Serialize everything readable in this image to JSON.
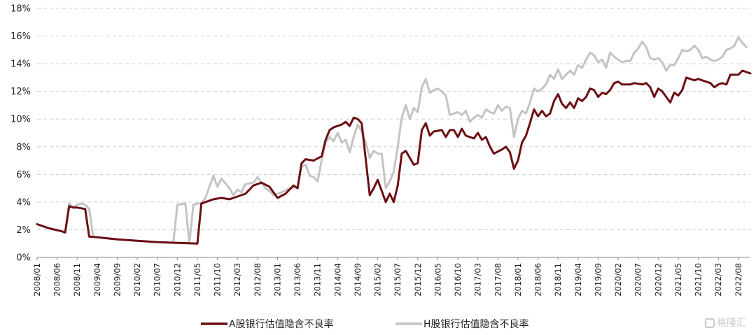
{
  "chart_data": {
    "type": "line",
    "title": "",
    "xlabel": "",
    "ylabel": "",
    "ylim": [
      0,
      18
    ],
    "y_ticks": [
      0,
      2,
      4,
      6,
      8,
      10,
      12,
      14,
      16,
      18
    ],
    "y_tick_labels": [
      "0%",
      "2%",
      "4%",
      "6%",
      "8%",
      "10%",
      "12%",
      "14%",
      "16%",
      "18%"
    ],
    "x_range": [
      "2008/01",
      "2022/11"
    ],
    "x_tick_labels": [
      "2008/01",
      "2008/06",
      "2008/11",
      "2009/04",
      "2009/09",
      "2010/02",
      "2010/07",
      "2010/12",
      "2011/05",
      "2011/10",
      "2012/03",
      "2012/08",
      "2013/01",
      "2013/06",
      "2013/11",
      "2014/04",
      "2014/09",
      "2015/02",
      "2015/07",
      "2015/12",
      "2016/05",
      "2016/10",
      "2017/03",
      "2017/08",
      "2018/01",
      "2018/06",
      "2018/11",
      "2019/04",
      "2019/09",
      "2020/02",
      "2020/07",
      "2020/12",
      "2021/05",
      "2021/10",
      "2022/03",
      "2022/08"
    ],
    "grid": "horizontal-dashed",
    "legend_position": "bottom",
    "series": [
      {
        "name": "A股银行估值隐含不良率",
        "color": "#6b0f13",
        "points": [
          [
            "2008/01",
            2.4
          ],
          [
            "2008/04",
            2.1
          ],
          [
            "2008/07",
            1.9
          ],
          [
            "2008/08",
            1.8
          ],
          [
            "2008/09",
            3.7
          ],
          [
            "2008/10",
            3.6
          ],
          [
            "2008/11",
            3.6
          ],
          [
            "2008/12",
            3.55
          ],
          [
            "2009/01",
            3.5
          ],
          [
            "2009/02",
            1.5
          ],
          [
            "2009/04",
            1.45
          ],
          [
            "2009/09",
            1.3
          ],
          [
            "2010/02",
            1.2
          ],
          [
            "2010/07",
            1.1
          ],
          [
            "2010/12",
            1.05
          ],
          [
            "2011/05",
            1.0
          ],
          [
            "2011/06",
            3.9
          ],
          [
            "2011/07",
            4.0
          ],
          [
            "2011/09",
            4.2
          ],
          [
            "2011/11",
            4.3
          ],
          [
            "2012/01",
            4.2
          ],
          [
            "2012/03",
            4.4
          ],
          [
            "2012/05",
            4.6
          ],
          [
            "2012/07",
            5.2
          ],
          [
            "2012/09",
            5.4
          ],
          [
            "2012/11",
            5.1
          ],
          [
            "2013/01",
            4.3
          ],
          [
            "2013/03",
            4.6
          ],
          [
            "2013/05",
            5.2
          ],
          [
            "2013/06",
            5.0
          ],
          [
            "2013/07",
            6.8
          ],
          [
            "2013/08",
            7.1
          ],
          [
            "2013/10",
            7.0
          ],
          [
            "2013/12",
            7.3
          ],
          [
            "2014/01",
            8.5
          ],
          [
            "2014/02",
            9.2
          ],
          [
            "2014/03",
            9.4
          ],
          [
            "2014/05",
            9.6
          ],
          [
            "2014/06",
            9.8
          ],
          [
            "2014/07",
            9.5
          ],
          [
            "2014/08",
            10.1
          ],
          [
            "2014/09",
            10.0
          ],
          [
            "2014/10",
            9.7
          ],
          [
            "2014/12",
            4.5
          ],
          [
            "2015/01",
            5.0
          ],
          [
            "2015/02",
            5.6
          ],
          [
            "2015/04",
            4.0
          ],
          [
            "2015/05",
            4.6
          ],
          [
            "2015/06",
            4.0
          ],
          [
            "2015/07",
            5.2
          ],
          [
            "2015/08",
            7.5
          ],
          [
            "2015/09",
            7.7
          ],
          [
            "2015/10",
            7.2
          ],
          [
            "2015/11",
            6.7
          ],
          [
            "2015/12",
            6.8
          ],
          [
            "2016/01",
            9.2
          ],
          [
            "2016/02",
            9.7
          ],
          [
            "2016/03",
            8.8
          ],
          [
            "2016/04",
            9.1
          ],
          [
            "2016/06",
            9.2
          ],
          [
            "2016/07",
            8.7
          ],
          [
            "2016/08",
            9.2
          ],
          [
            "2016/09",
            9.2
          ],
          [
            "2016/10",
            8.7
          ],
          [
            "2016/11",
            9.3
          ],
          [
            "2016/12",
            8.8
          ],
          [
            "2017/02",
            8.6
          ],
          [
            "2017/03",
            9.0
          ],
          [
            "2017/04",
            8.5
          ],
          [
            "2017/05",
            8.7
          ],
          [
            "2017/06",
            8.0
          ],
          [
            "2017/07",
            7.5
          ],
          [
            "2017/09",
            7.8
          ],
          [
            "2017/10",
            8.0
          ],
          [
            "2017/11",
            7.6
          ],
          [
            "2017/12",
            6.4
          ],
          [
            "2018/01",
            7.0
          ],
          [
            "2018/02",
            8.3
          ],
          [
            "2018/03",
            8.8
          ],
          [
            "2018/04",
            9.7
          ],
          [
            "2018/05",
            10.7
          ],
          [
            "2018/06",
            10.2
          ],
          [
            "2018/07",
            10.6
          ],
          [
            "2018/08",
            10.2
          ],
          [
            "2018/09",
            10.4
          ],
          [
            "2018/10",
            11.3
          ],
          [
            "2018/11",
            11.8
          ],
          [
            "2018/12",
            11.1
          ],
          [
            "2019/01",
            10.8
          ],
          [
            "2019/02",
            11.2
          ],
          [
            "2019/03",
            10.8
          ],
          [
            "2019/04",
            11.5
          ],
          [
            "2019/05",
            11.3
          ],
          [
            "2019/06",
            11.6
          ],
          [
            "2019/07",
            12.2
          ],
          [
            "2019/08",
            12.1
          ],
          [
            "2019/09",
            11.6
          ],
          [
            "2019/10",
            11.9
          ],
          [
            "2019/11",
            11.8
          ],
          [
            "2019/12",
            12.1
          ],
          [
            "2020/01",
            12.6
          ],
          [
            "2020/02",
            12.7
          ],
          [
            "2020/03",
            12.5
          ],
          [
            "2020/05",
            12.5
          ],
          [
            "2020/06",
            12.6
          ],
          [
            "2020/08",
            12.5
          ],
          [
            "2020/09",
            12.6
          ],
          [
            "2020/10",
            12.3
          ],
          [
            "2020/11",
            11.6
          ],
          [
            "2020/12",
            12.2
          ],
          [
            "2021/01",
            12.0
          ],
          [
            "2021/02",
            11.6
          ],
          [
            "2021/03",
            11.2
          ],
          [
            "2021/04",
            11.9
          ],
          [
            "2021/05",
            11.7
          ],
          [
            "2021/06",
            12.1
          ],
          [
            "2021/07",
            13.0
          ],
          [
            "2021/09",
            12.8
          ],
          [
            "2021/10",
            12.9
          ],
          [
            "2021/12",
            12.7
          ],
          [
            "2022/01",
            12.6
          ],
          [
            "2022/02",
            12.3
          ],
          [
            "2022/03",
            12.5
          ],
          [
            "2022/04",
            12.6
          ],
          [
            "2022/05",
            12.5
          ],
          [
            "2022/06",
            13.2
          ],
          [
            "2022/07",
            13.2
          ],
          [
            "2022/08",
            13.2
          ],
          [
            "2022/09",
            13.5
          ],
          [
            "2022/11",
            13.3
          ]
        ]
      },
      {
        "name": "H股银行估值隐含不良率",
        "color": "#c4c4c4",
        "points": [
          [
            "2008/01",
            2.4
          ],
          [
            "2008/04",
            2.1
          ],
          [
            "2008/07",
            1.9
          ],
          [
            "2008/08",
            1.8
          ],
          [
            "2008/09",
            3.9
          ],
          [
            "2008/10",
            3.6
          ],
          [
            "2008/11",
            3.8
          ],
          [
            "2008/12",
            3.9
          ],
          [
            "2009/01",
            3.8
          ],
          [
            "2009/02",
            3.5
          ],
          [
            "2009/03",
            1.5
          ],
          [
            "2009/04",
            1.45
          ],
          [
            "2009/09",
            1.3
          ],
          [
            "2010/02",
            1.2
          ],
          [
            "2010/07",
            1.1
          ],
          [
            "2010/11",
            1.05
          ],
          [
            "2010/12",
            3.8
          ],
          [
            "2011/02",
            3.9
          ],
          [
            "2011/03",
            1.0
          ],
          [
            "2011/04",
            3.8
          ],
          [
            "2011/05",
            3.9
          ],
          [
            "2011/06",
            3.9
          ],
          [
            "2011/07",
            4.3
          ],
          [
            "2011/09",
            5.9
          ],
          [
            "2011/10",
            5.1
          ],
          [
            "2011/11",
            5.7
          ],
          [
            "2012/01",
            5.0
          ],
          [
            "2012/02",
            4.5
          ],
          [
            "2012/03",
            4.9
          ],
          [
            "2012/04",
            4.7
          ],
          [
            "2012/05",
            5.3
          ],
          [
            "2012/07",
            5.4
          ],
          [
            "2012/08",
            5.8
          ],
          [
            "2012/09",
            5.4
          ],
          [
            "2012/10",
            5.0
          ],
          [
            "2012/11",
            4.8
          ],
          [
            "2012/12",
            4.5
          ],
          [
            "2013/02",
            4.7
          ],
          [
            "2013/04",
            5.0
          ],
          [
            "2013/06",
            5.1
          ],
          [
            "2013/07",
            6.6
          ],
          [
            "2013/08",
            6.7
          ],
          [
            "2013/09",
            5.9
          ],
          [
            "2013/10",
            5.8
          ],
          [
            "2013/11",
            5.5
          ],
          [
            "2013/12",
            7.0
          ],
          [
            "2014/01",
            8.3
          ],
          [
            "2014/02",
            8.7
          ],
          [
            "2014/03",
            8.4
          ],
          [
            "2014/04",
            9.0
          ],
          [
            "2014/05",
            8.3
          ],
          [
            "2014/06",
            8.5
          ],
          [
            "2014/07",
            7.6
          ],
          [
            "2014/08",
            8.7
          ],
          [
            "2014/09",
            9.6
          ],
          [
            "2014/10",
            9.1
          ],
          [
            "2014/11",
            8.3
          ],
          [
            "2014/12",
            7.2
          ],
          [
            "2015/01",
            7.7
          ],
          [
            "2015/02",
            7.5
          ],
          [
            "2015/03",
            7.5
          ],
          [
            "2015/04",
            5.0
          ],
          [
            "2015/05",
            5.5
          ],
          [
            "2015/06",
            6.2
          ],
          [
            "2015/07",
            8.0
          ],
          [
            "2015/08",
            10.1
          ],
          [
            "2015/09",
            11.0
          ],
          [
            "2015/10",
            10.0
          ],
          [
            "2015/11",
            10.8
          ],
          [
            "2015/12",
            10.5
          ],
          [
            "2016/01",
            12.3
          ],
          [
            "2016/02",
            12.9
          ],
          [
            "2016/03",
            11.9
          ],
          [
            "2016/04",
            12.1
          ],
          [
            "2016/05",
            12.2
          ],
          [
            "2016/06",
            12.0
          ],
          [
            "2016/07",
            11.7
          ],
          [
            "2016/08",
            10.3
          ],
          [
            "2016/09",
            10.4
          ],
          [
            "2016/10",
            10.5
          ],
          [
            "2016/11",
            10.3
          ],
          [
            "2016/12",
            10.6
          ],
          [
            "2017/01",
            9.8
          ],
          [
            "2017/02",
            10.1
          ],
          [
            "2017/03",
            10.3
          ],
          [
            "2017/04",
            10.1
          ],
          [
            "2017/05",
            10.7
          ],
          [
            "2017/06",
            10.5
          ],
          [
            "2017/07",
            10.4
          ],
          [
            "2017/08",
            11.0
          ],
          [
            "2017/09",
            10.6
          ],
          [
            "2017/10",
            10.9
          ],
          [
            "2017/11",
            10.8
          ],
          [
            "2017/12",
            8.7
          ],
          [
            "2018/01",
            10.0
          ],
          [
            "2018/02",
            10.6
          ],
          [
            "2018/03",
            10.4
          ],
          [
            "2018/04",
            11.2
          ],
          [
            "2018/05",
            12.2
          ],
          [
            "2018/06",
            12.0
          ],
          [
            "2018/07",
            12.2
          ],
          [
            "2018/08",
            12.5
          ],
          [
            "2018/09",
            13.2
          ],
          [
            "2018/10",
            12.9
          ],
          [
            "2018/11",
            13.6
          ],
          [
            "2018/12",
            12.9
          ],
          [
            "2019/01",
            13.2
          ],
          [
            "2019/02",
            13.5
          ],
          [
            "2019/03",
            13.2
          ],
          [
            "2019/04",
            13.9
          ],
          [
            "2019/05",
            13.7
          ],
          [
            "2019/06",
            14.3
          ],
          [
            "2019/07",
            14.8
          ],
          [
            "2019/08",
            14.6
          ],
          [
            "2019/09",
            14.1
          ],
          [
            "2019/10",
            14.3
          ],
          [
            "2019/11",
            13.7
          ],
          [
            "2019/12",
            14.8
          ],
          [
            "2020/01",
            14.5
          ],
          [
            "2020/02",
            14.3
          ],
          [
            "2020/03",
            14.1
          ],
          [
            "2020/04",
            14.2
          ],
          [
            "2020/05",
            14.2
          ],
          [
            "2020/06",
            14.8
          ],
          [
            "2020/07",
            15.1
          ],
          [
            "2020/08",
            15.6
          ],
          [
            "2020/09",
            15.2
          ],
          [
            "2020/10",
            14.4
          ],
          [
            "2020/11",
            14.3
          ],
          [
            "2020/12",
            14.4
          ],
          [
            "2021/01",
            14.1
          ],
          [
            "2021/02",
            13.5
          ],
          [
            "2021/03",
            13.9
          ],
          [
            "2021/04",
            13.9
          ],
          [
            "2021/05",
            14.4
          ],
          [
            "2021/06",
            15.0
          ],
          [
            "2021/07",
            14.9
          ],
          [
            "2021/08",
            15.0
          ],
          [
            "2021/09",
            15.3
          ],
          [
            "2021/10",
            15.0
          ],
          [
            "2021/11",
            14.4
          ],
          [
            "2021/12",
            14.5
          ],
          [
            "2022/01",
            14.3
          ],
          [
            "2022/02",
            14.2
          ],
          [
            "2022/03",
            14.3
          ],
          [
            "2022/04",
            14.5
          ],
          [
            "2022/05",
            15.0
          ],
          [
            "2022/06",
            15.1
          ],
          [
            "2022/07",
            15.3
          ],
          [
            "2022/08",
            15.9
          ],
          [
            "2022/09",
            15.5
          ],
          [
            "2022/10",
            15.2
          ]
        ]
      }
    ]
  },
  "watermark": "格隆汇"
}
